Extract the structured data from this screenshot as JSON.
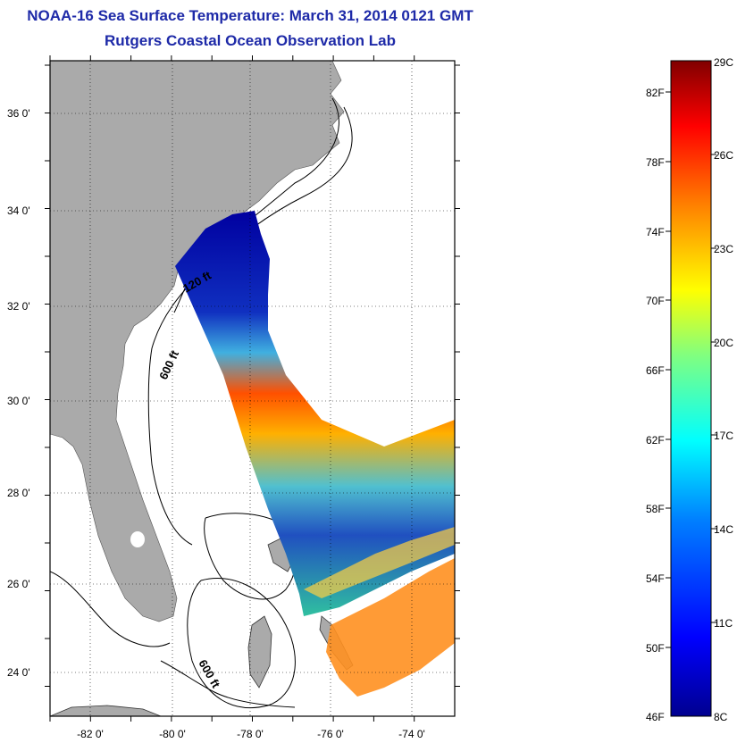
{
  "title": {
    "line1": "NOAA-16 Sea Surface Temperature:  March 31, 2014 0121 GMT",
    "line2": "Rutgers Coastal Ocean Observation Lab"
  },
  "map": {
    "lat_labels": [
      "36 0'",
      "34 0'",
      "32 0'",
      "30 0'",
      "28 0'",
      "26 0'",
      "24 0'"
    ],
    "lon_labels": [
      "-82 0'",
      "-80 0'",
      "-78 0'",
      "-76 0'",
      "-74 0'"
    ],
    "depth_labels": [
      "120 ft",
      "600 ft",
      "600 ft"
    ],
    "colors": {
      "land": "#aaaaaa",
      "ocean": "#ffffff",
      "frame": "#000000"
    }
  },
  "colorbar": {
    "fahrenheit": [
      "82F",
      "78F",
      "74F",
      "70F",
      "66F",
      "62F",
      "58F",
      "54F",
      "50F",
      "46F"
    ],
    "celsius": [
      "29C",
      "26C",
      "23C",
      "20C",
      "17C",
      "14C",
      "11C",
      "8C"
    ],
    "min_label": "46F",
    "min_c": "8C",
    "max_c": "29C",
    "stops": [
      "#00008f",
      "#0000ff",
      "#0080ff",
      "#00ffff",
      "#80ff80",
      "#ffff00",
      "#ff8000",
      "#ff0000",
      "#800000"
    ]
  }
}
